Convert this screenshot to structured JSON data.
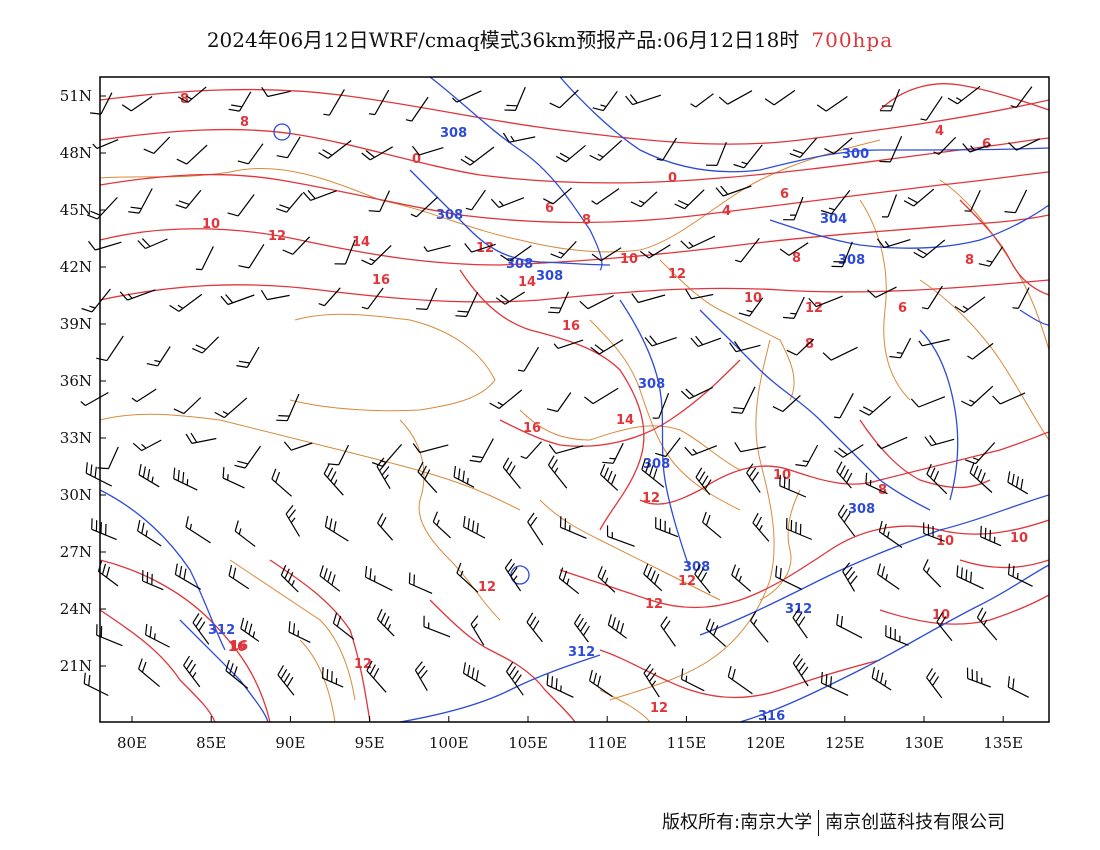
{
  "header": {
    "title": "2024年06月12日WRF/cmaq模式36km预报产品:06月12日18时",
    "level": "700hpa"
  },
  "footer": {
    "copyright": "版权所有:南京大学",
    "company": "南京创蓝科技有限公司"
  },
  "colors": {
    "temperature_isotherm": "#e0353a",
    "geopotential_height": "#2d4bd8",
    "boundaries": "#d98a3a",
    "wind_barb": "#000000"
  },
  "axes": {
    "lat_labels": [
      "51N",
      "48N",
      "45N",
      "42N",
      "39N",
      "36N",
      "33N",
      "30N",
      "27N",
      "24N",
      "21N"
    ],
    "lon_labels": [
      "80E",
      "85E",
      "90E",
      "95E",
      "100E",
      "105E",
      "110E",
      "115E",
      "120E",
      "125E",
      "130E",
      "135E"
    ]
  },
  "temperature_labels": [
    "8",
    "8",
    "4",
    "6",
    "0",
    "0",
    "4",
    "6",
    "8",
    "6",
    "10",
    "12",
    "14",
    "12",
    "14",
    "16",
    "12",
    "10",
    "8",
    "8",
    "8",
    "6",
    "10",
    "16",
    "14",
    "16",
    "12",
    "16",
    "10",
    "12",
    "10",
    "8",
    "10",
    "12",
    "12",
    "10",
    "16",
    "12",
    "12",
    "12"
  ],
  "height_labels": [
    "308",
    "308",
    "308",
    "308",
    "300",
    "304",
    "308",
    "308",
    "308",
    "308",
    "312",
    "312",
    "312",
    "316"
  ]
}
